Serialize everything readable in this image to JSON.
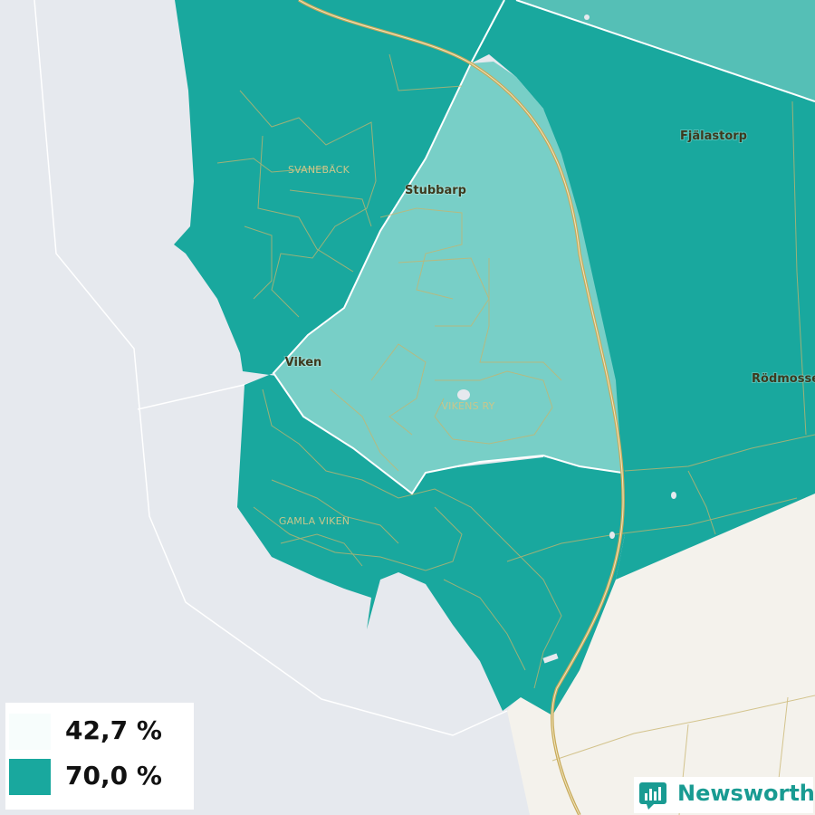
{
  "colors": {
    "water": "#e6e9ee",
    "land": "#f4f2ec",
    "high": "#19a89e",
    "low": "#78cfc7",
    "upper_right": "#55bfb6",
    "roads": "#c8b46c",
    "border": "#ffffff",
    "brand": "#199b92"
  },
  "places": {
    "fjalastorp": "Fjälastorp",
    "stubbarp": "Stubbarp",
    "viken": "Viken",
    "rodmosse": "Rödmosse"
  },
  "districts": {
    "svaneback": "SVANEBÄCK",
    "vikens_ry": "VIKENS RY",
    "gamla_viken": "GAMLA VIKEN"
  },
  "legend": [
    {
      "label": "42,7 %",
      "color": "#f7fdfc"
    },
    {
      "label": "70,0 %",
      "color": "#19a89e"
    }
  ],
  "brand": {
    "name": "Newsworthy",
    "icon": "bar-chart-icon"
  }
}
